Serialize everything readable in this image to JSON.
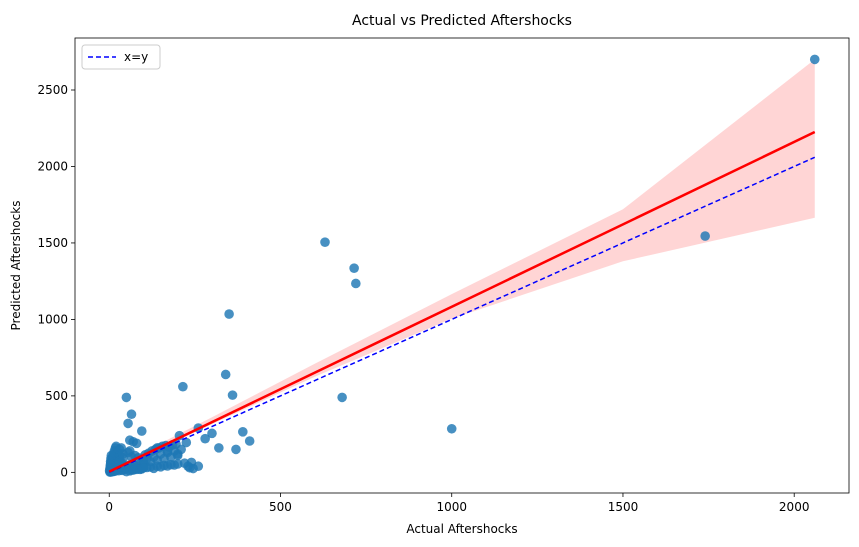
{
  "chart_data": {
    "type": "scatter",
    "title": "Actual vs Predicted Aftershocks",
    "xlabel": "Actual Aftershocks",
    "ylabel": "Predicted Aftershocks",
    "xlim": [
      -100,
      2160
    ],
    "ylim": [
      -135,
      2840
    ],
    "xticks": [
      0,
      500,
      1000,
      1500,
      2000
    ],
    "yticks": [
      0,
      500,
      1000,
      1500,
      2000,
      2500
    ],
    "grid": false,
    "legend": {
      "placement": "top-left",
      "entries": [
        "x=y"
      ]
    },
    "colors": {
      "points": "#1f77b4",
      "fit_line": "#ff0000",
      "ci_band": "#ffb3b3",
      "identity_line": "#0000ff"
    },
    "points": {
      "x": [
        2,
        3,
        4,
        5,
        6,
        7,
        8,
        9,
        10,
        12,
        14,
        15,
        16,
        18,
        20,
        22,
        25,
        28,
        30,
        32,
        35,
        38,
        40,
        45,
        50,
        55,
        60,
        65,
        70,
        75,
        80,
        85,
        90,
        95,
        100,
        110,
        120,
        130,
        140,
        150,
        160,
        170,
        180,
        190,
        200,
        5,
        8,
        10,
        12,
        15,
        18,
        20,
        25,
        30,
        10,
        12,
        15,
        20,
        25,
        30,
        35,
        40,
        1,
        2,
        3,
        4,
        5,
        6,
        3,
        4,
        50,
        60,
        70,
        80,
        90,
        100,
        120,
        140,
        160,
        180,
        200,
        220,
        240,
        100,
        110,
        130,
        150,
        170,
        190,
        210,
        50,
        55,
        60,
        65,
        30,
        35,
        40,
        55,
        60,
        70,
        80,
        95,
        65,
        75,
        85,
        105,
        115,
        125,
        135,
        145,
        155,
        165,
        175,
        185,
        195,
        205,
        215,
        225,
        235,
        245,
        260,
        280,
        300,
        320,
        340,
        350,
        360,
        370,
        390,
        410,
        630,
        715,
        720,
        680,
        1000,
        1740,
        2060,
        15,
        20,
        30,
        35,
        45,
        65,
        80,
        90,
        100,
        140,
        170,
        200,
        230,
        260
      ],
      "y": [
        2,
        5,
        8,
        3,
        10,
        6,
        15,
        12,
        4,
        20,
        18,
        7,
        25,
        9,
        30,
        14,
        22,
        11,
        35,
        17,
        28,
        13,
        40,
        19,
        45,
        24,
        33,
        16,
        50,
        21,
        38,
        27,
        55,
        23,
        60,
        32,
        70,
        26,
        80,
        36,
        90,
        42,
        100,
        48,
        120,
        60,
        80,
        100,
        120,
        140,
        160,
        170,
        130,
        110,
        40,
        60,
        70,
        90,
        85,
        75,
        65,
        95,
        10,
        25,
        45,
        70,
        90,
        110,
        30,
        55,
        5,
        10,
        15,
        20,
        25,
        30,
        35,
        40,
        45,
        50,
        55,
        60,
        65,
        80,
        90,
        100,
        120,
        130,
        140,
        150,
        490,
        320,
        210,
        380,
        150,
        160,
        120,
        130,
        140,
        200,
        190,
        270,
        100,
        110,
        95,
        115,
        125,
        140,
        150,
        160,
        170,
        175,
        165,
        180,
        185,
        240,
        560,
        195,
        30,
        25,
        290,
        220,
        255,
        160,
        640,
        1035,
        505,
        150,
        265,
        205,
        1505,
        1335,
        1235,
        490,
        285,
        1545,
        2700,
        50,
        45,
        60,
        35,
        30,
        40,
        25,
        20,
        30,
        160,
        140,
        110,
        40,
        40
      ]
    },
    "fit_line": {
      "x": [
        0,
        2060
      ],
      "y": [
        5,
        2225
      ]
    },
    "confidence_band": {
      "x": [
        0,
        150,
        300,
        600,
        1000,
        1500,
        2060
      ],
      "lower": [
        -10,
        155,
        315,
        625,
        1005,
        1380,
        1665
      ],
      "upper": [
        20,
        190,
        360,
        710,
        1165,
        1720,
        2700
      ]
    },
    "identity_line": {
      "x": [
        0,
        2060
      ],
      "y": [
        0,
        2060
      ],
      "label": "x=y"
    }
  }
}
